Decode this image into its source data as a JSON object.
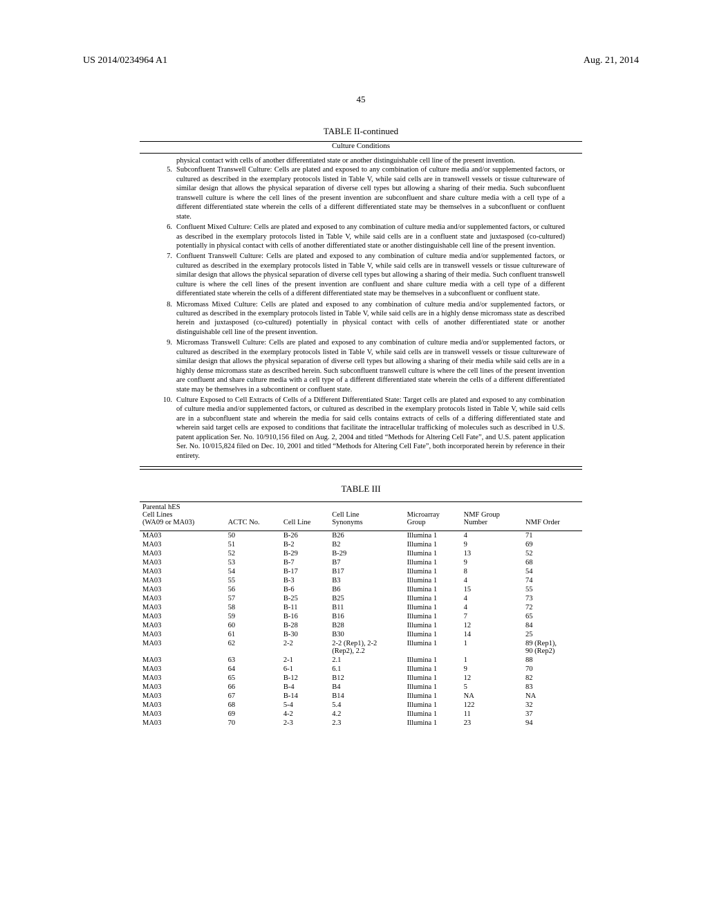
{
  "header": {
    "doc_id": "US 2014/0234964 A1",
    "date": "Aug. 21, 2014",
    "page": "45"
  },
  "table2": {
    "title": "TABLE II-continued",
    "subtitle": "Culture Conditions",
    "pretext": "physical contact with cells of another differentiated state or another distinguishable cell line of the present invention.",
    "items": [
      {
        "n": "5.",
        "t": "Subconfluent Transwell Culture: Cells are plated and exposed to any combination of culture media and/or supplemented factors, or cultured as described in the exemplary protocols listed in Table V, while said cells are in transwell vessels or tissue cultureware of similar design that allows the physical separation of diverse cell types but allowing a sharing of their media. Such subconfluent transwell culture is where the cell lines of the present invention are subconfluent and share culture media with a cell type of a different differentiated state wherein the cells of a different differentiated state may be themselves in a subconfluent or confluent state."
      },
      {
        "n": "6.",
        "t": "Confluent Mixed Culture: Cells are plated and exposed to any combination of culture media and/or supplemented factors, or cultured as described in the exemplary protocols listed in Table V, while said cells are in a confluent state and juxtasposed (co-cultured) potentially in physical contact with cells of another differentiated state or another distinguishable cell line of the present invention."
      },
      {
        "n": "7.",
        "t": "Confluent Transwell Culture: Cells are plated and exposed to any combination of culture media and/or supplemented factors, or cultured as described in the exemplary protocols listed in Table V, while said cells are in transwell vessels or tissue cultureware of similar design that allows the physical separation of diverse cell types but allowing a sharing of their media. Such confluent transwell culture is where the cell lines of the present invention are confluent and share culture media with a cell type of a different differentiated state wherein the cells of a different differentiated state may be themselves in a subconfluent or confluent state."
      },
      {
        "n": "8.",
        "t": "Micromass Mixed Culture: Cells are plated and exposed to any combination of culture media and/or supplemented factors, or cultured as described in the exemplary protocols listed in Table V, while said cells are in a highly dense micromass state as described herein and juxtasposed (co-cultured) potentially in physical contact with cells of another differentiated state or another distinguishable cell line of the present invention."
      },
      {
        "n": "9.",
        "t": "Micromass Transwell Culture: Cells are plated and exposed to any combination of culture media and/or supplemented factors, or cultured as described in the exemplary protocols listed in Table V, while said cells are in transwell vessels or tissue cultureware of similar design that allows the physical separation of diverse cell types but allowing a sharing of their media while said cells are in a highly dense micromass state as described herein. Such subconfluent transwell culture is where the cell lines of the present invention are confluent and share culture media with a cell type of a different differentiated state wherein the cells of a different differentiated state may be themselves in a subcontinent or confluent state."
      },
      {
        "n": "10.",
        "t": "Culture Exposed to Cell Extracts of Cells of a Different Differentiated State: Target cells are plated and exposed to any combination of culture media and/or supplemented factors, or cultured as described in the exemplary protocols listed in Table V, while said cells are in a subconfluent state and wherein the media for said cells contains extracts of cells of a differing differentiated state and wherein said target cells are exposed to conditions that facilitate the intracellular trafficking of molecules such as described in U.S. patent application Ser. No. 10/910,156 filed on Aug. 2, 2004 and titled “Methods for Altering Cell Fate”, and U.S. patent application Ser. No. 10/015,824 filed on Dec. 10, 2001 and titled “Methods for Altering Cell Fate”, both incorporated herein by reference in their entirety."
      }
    ]
  },
  "table3": {
    "title": "TABLE III",
    "columns": [
      "Parental hES\nCell Lines\n(WA09 or MA03)",
      "ACTC No.",
      "Cell Line",
      "Cell Line\nSynonyms",
      "Microarray\nGroup",
      "NMF Group\nNumber",
      "NMF Order"
    ],
    "rows": [
      [
        "MA03",
        "50",
        "B-26",
        "B26",
        "Illumina 1",
        "4",
        "71"
      ],
      [
        "MA03",
        "51",
        "B-2",
        "B2",
        "Illumina 1",
        "9",
        "69"
      ],
      [
        "MA03",
        "52",
        "B-29",
        "B-29",
        "Illumina 1",
        "13",
        "52"
      ],
      [
        "MA03",
        "53",
        "B-7",
        "B7",
        "Illumina 1",
        "9",
        "68"
      ],
      [
        "MA03",
        "54",
        "B-17",
        "B17",
        "Illumina 1",
        "8",
        "54"
      ],
      [
        "MA03",
        "55",
        "B-3",
        "B3",
        "Illumina 1",
        "4",
        "74"
      ],
      [
        "MA03",
        "56",
        "B-6",
        "B6",
        "Illumina 1",
        "15",
        "55"
      ],
      [
        "MA03",
        "57",
        "B-25",
        "B25",
        "Illumina 1",
        "4",
        "73"
      ],
      [
        "MA03",
        "58",
        "B-11",
        "B11",
        "Illumina 1",
        "4",
        "72"
      ],
      [
        "MA03",
        "59",
        "B-16",
        "B16",
        "Illumina 1",
        "7",
        "65"
      ],
      [
        "MA03",
        "60",
        "B-28",
        "B28",
        "Illumina 1",
        "12",
        "84"
      ],
      [
        "MA03",
        "61",
        "B-30",
        "B30",
        "Illumina 1",
        "14",
        "25"
      ],
      [
        "MA03",
        "62",
        "2-2",
        "2-2 (Rep1), 2-2\n(Rep2), 2.2",
        "Illumina 1",
        "1",
        "89 (Rep1),\n90 (Rep2)"
      ],
      [
        "MA03",
        "63",
        "2-1",
        "2.1",
        "Illumina 1",
        "1",
        "88"
      ],
      [
        "MA03",
        "64",
        "6-1",
        "6.1",
        "Illumina 1",
        "9",
        "70"
      ],
      [
        "MA03",
        "65",
        "B-12",
        "B12",
        "Illumina 1",
        "12",
        "82"
      ],
      [
        "MA03",
        "66",
        "B-4",
        "B4",
        "Illumina 1",
        "5",
        "83"
      ],
      [
        "MA03",
        "67",
        "B-14",
        "B14",
        "Illumina 1",
        "NA",
        "NA"
      ],
      [
        "MA03",
        "68",
        "5-4",
        "5.4",
        "Illumina 1",
        "122",
        "32"
      ],
      [
        "MA03",
        "69",
        "4-2",
        "4.2",
        "Illumina 1",
        "11",
        "37"
      ],
      [
        "MA03",
        "70",
        "2-3",
        "2.3",
        "Illumina 1",
        "23",
        "94"
      ]
    ]
  }
}
